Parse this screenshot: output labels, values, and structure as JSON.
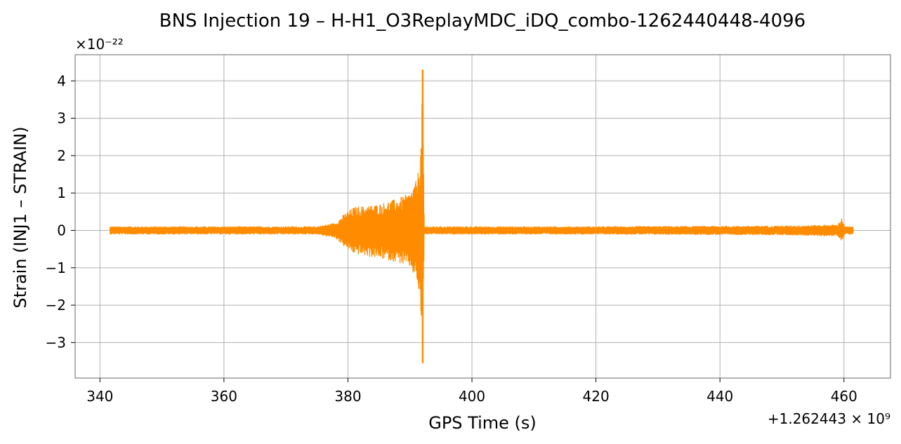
{
  "chart_data": {
    "type": "line",
    "title": "BNS Injection 19 – H-H1_O3ReplayMDC_iDQ_combo-1262440448-4096",
    "xlabel": "GPS Time (s)",
    "ylabel": "Strain (INJ1 – STRAIN)",
    "x_offset_label": "+1.262443 × 10⁹",
    "y_scale_label": "×10⁻²²",
    "xlim": [
      336,
      467.5
    ],
    "ylim": [
      -3.95,
      4.7
    ],
    "x_ticks": [
      340,
      360,
      380,
      400,
      420,
      440,
      460
    ],
    "x_tick_labels": [
      "340",
      "360",
      "380",
      "400",
      "420",
      "440",
      "460"
    ],
    "y_ticks": [
      -3,
      -2,
      -1,
      0,
      1,
      2,
      3,
      4
    ],
    "y_tick_labels": [
      "−3",
      "−2",
      "−1",
      "0",
      "1",
      "2",
      "3",
      "4"
    ],
    "grid": true,
    "color": "#ff8c00",
    "series": [
      {
        "envelope": [
          {
            "x": 341.6,
            "upper": 0.1,
            "lower": -0.1
          },
          {
            "x": 360,
            "upper": 0.1,
            "lower": -0.1
          },
          {
            "x": 375,
            "upper": 0.1,
            "lower": -0.1
          },
          {
            "x": 378,
            "upper": 0.2,
            "lower": -0.2
          },
          {
            "x": 379.5,
            "upper": 0.45,
            "lower": -0.45
          },
          {
            "x": 381,
            "upper": 0.62,
            "lower": -0.62
          },
          {
            "x": 385,
            "upper": 0.7,
            "lower": -0.75
          },
          {
            "x": 388,
            "upper": 0.85,
            "lower": -0.85
          },
          {
            "x": 390,
            "upper": 1.0,
            "lower": -1.0
          },
          {
            "x": 391.2,
            "upper": 1.4,
            "lower": -1.4
          },
          {
            "x": 391.8,
            "upper": 2.4,
            "lower": -2.4
          },
          {
            "x": 392.05,
            "upper": 4.3,
            "lower": -3.55
          },
          {
            "x": 392.3,
            "upper": 0.1,
            "lower": -0.1
          },
          {
            "x": 420,
            "upper": 0.1,
            "lower": -0.1
          },
          {
            "x": 450,
            "upper": 0.12,
            "lower": -0.12
          },
          {
            "x": 459,
            "upper": 0.15,
            "lower": -0.15
          },
          {
            "x": 459.7,
            "upper": 0.35,
            "lower": -0.3
          },
          {
            "x": 460.1,
            "upper": 0.1,
            "lower": -0.1
          },
          {
            "x": 461.5,
            "upper": 0.1,
            "lower": -0.1
          }
        ]
      }
    ]
  }
}
